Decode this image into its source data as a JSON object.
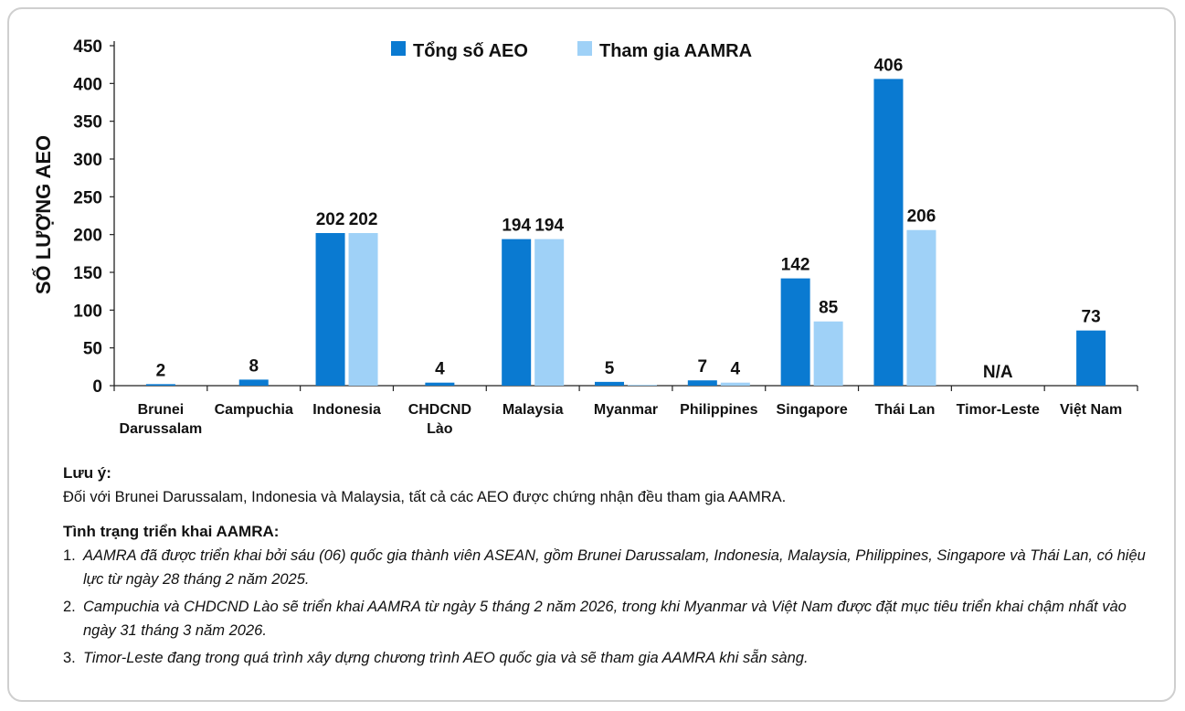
{
  "chart_data": {
    "type": "bar",
    "ylabel": "SỐ LƯỢNG AEO",
    "ylim": [
      0,
      450
    ],
    "yticks": [
      0,
      50,
      100,
      150,
      200,
      250,
      300,
      350,
      400,
      450
    ],
    "categories": [
      [
        "Brunei",
        "Darussalam"
      ],
      [
        "Campuchia"
      ],
      [
        "Indonesia"
      ],
      [
        "CHDCND",
        "Lào"
      ],
      [
        "Malaysia"
      ],
      [
        "Myanmar"
      ],
      [
        "Philippines"
      ],
      [
        "Singapore"
      ],
      [
        "Thái Lan"
      ],
      [
        "Timor-Leste"
      ],
      [
        "Việt Nam"
      ]
    ],
    "series": [
      {
        "name": "Tổng số AEO",
        "color": "#0a7ad1",
        "values": [
          2,
          8,
          202,
          4,
          194,
          5,
          7,
          142,
          406,
          null,
          73
        ],
        "labels": [
          "2",
          "8",
          "202",
          "4",
          "194",
          "5",
          "7",
          "142",
          "406",
          "N/A",
          "73"
        ]
      },
      {
        "name": "Tham gia AAMRA",
        "color": "#9fd1f7",
        "values": [
          null,
          null,
          202,
          null,
          194,
          1,
          4,
          85,
          206,
          null,
          null
        ],
        "labels": [
          "",
          "",
          "202",
          "",
          "194",
          "",
          "4",
          "85",
          "206",
          "",
          ""
        ]
      }
    ],
    "grid": false,
    "legend": "top-center"
  },
  "notes": {
    "luu_y_title": "Lưu ý:",
    "luu_y_text": "Đối với Brunei Darussalam, Indonesia và Malaysia, tất cả các AEO được chứng nhận đều tham gia AAMRA.",
    "status_title": "Tình trạng triển khai AAMRA:",
    "items": [
      {
        "num": "1.",
        "text": "AAMRA đã được triển khai bởi sáu (06) quốc gia thành viên ASEAN, gồm Brunei Darussalam, Indonesia, Malaysia, Philippines, Singapore và Thái Lan, có hiệu lực từ ngày 28 tháng 2 năm 2025."
      },
      {
        "num": "2.",
        "text": "Campuchia và CHDCND Lào sẽ triển khai AAMRA từ ngày 5 tháng 2 năm 2026, trong khi Myanmar và Việt Nam được đặt mục tiêu triển khai chậm nhất vào ngày 31 tháng 3 năm 2026."
      },
      {
        "num": "3.",
        "text": "Timor-Leste đang trong quá trình xây dựng chương trình AEO quốc gia và sẽ tham gia AAMRA khi sẵn sàng."
      }
    ]
  }
}
